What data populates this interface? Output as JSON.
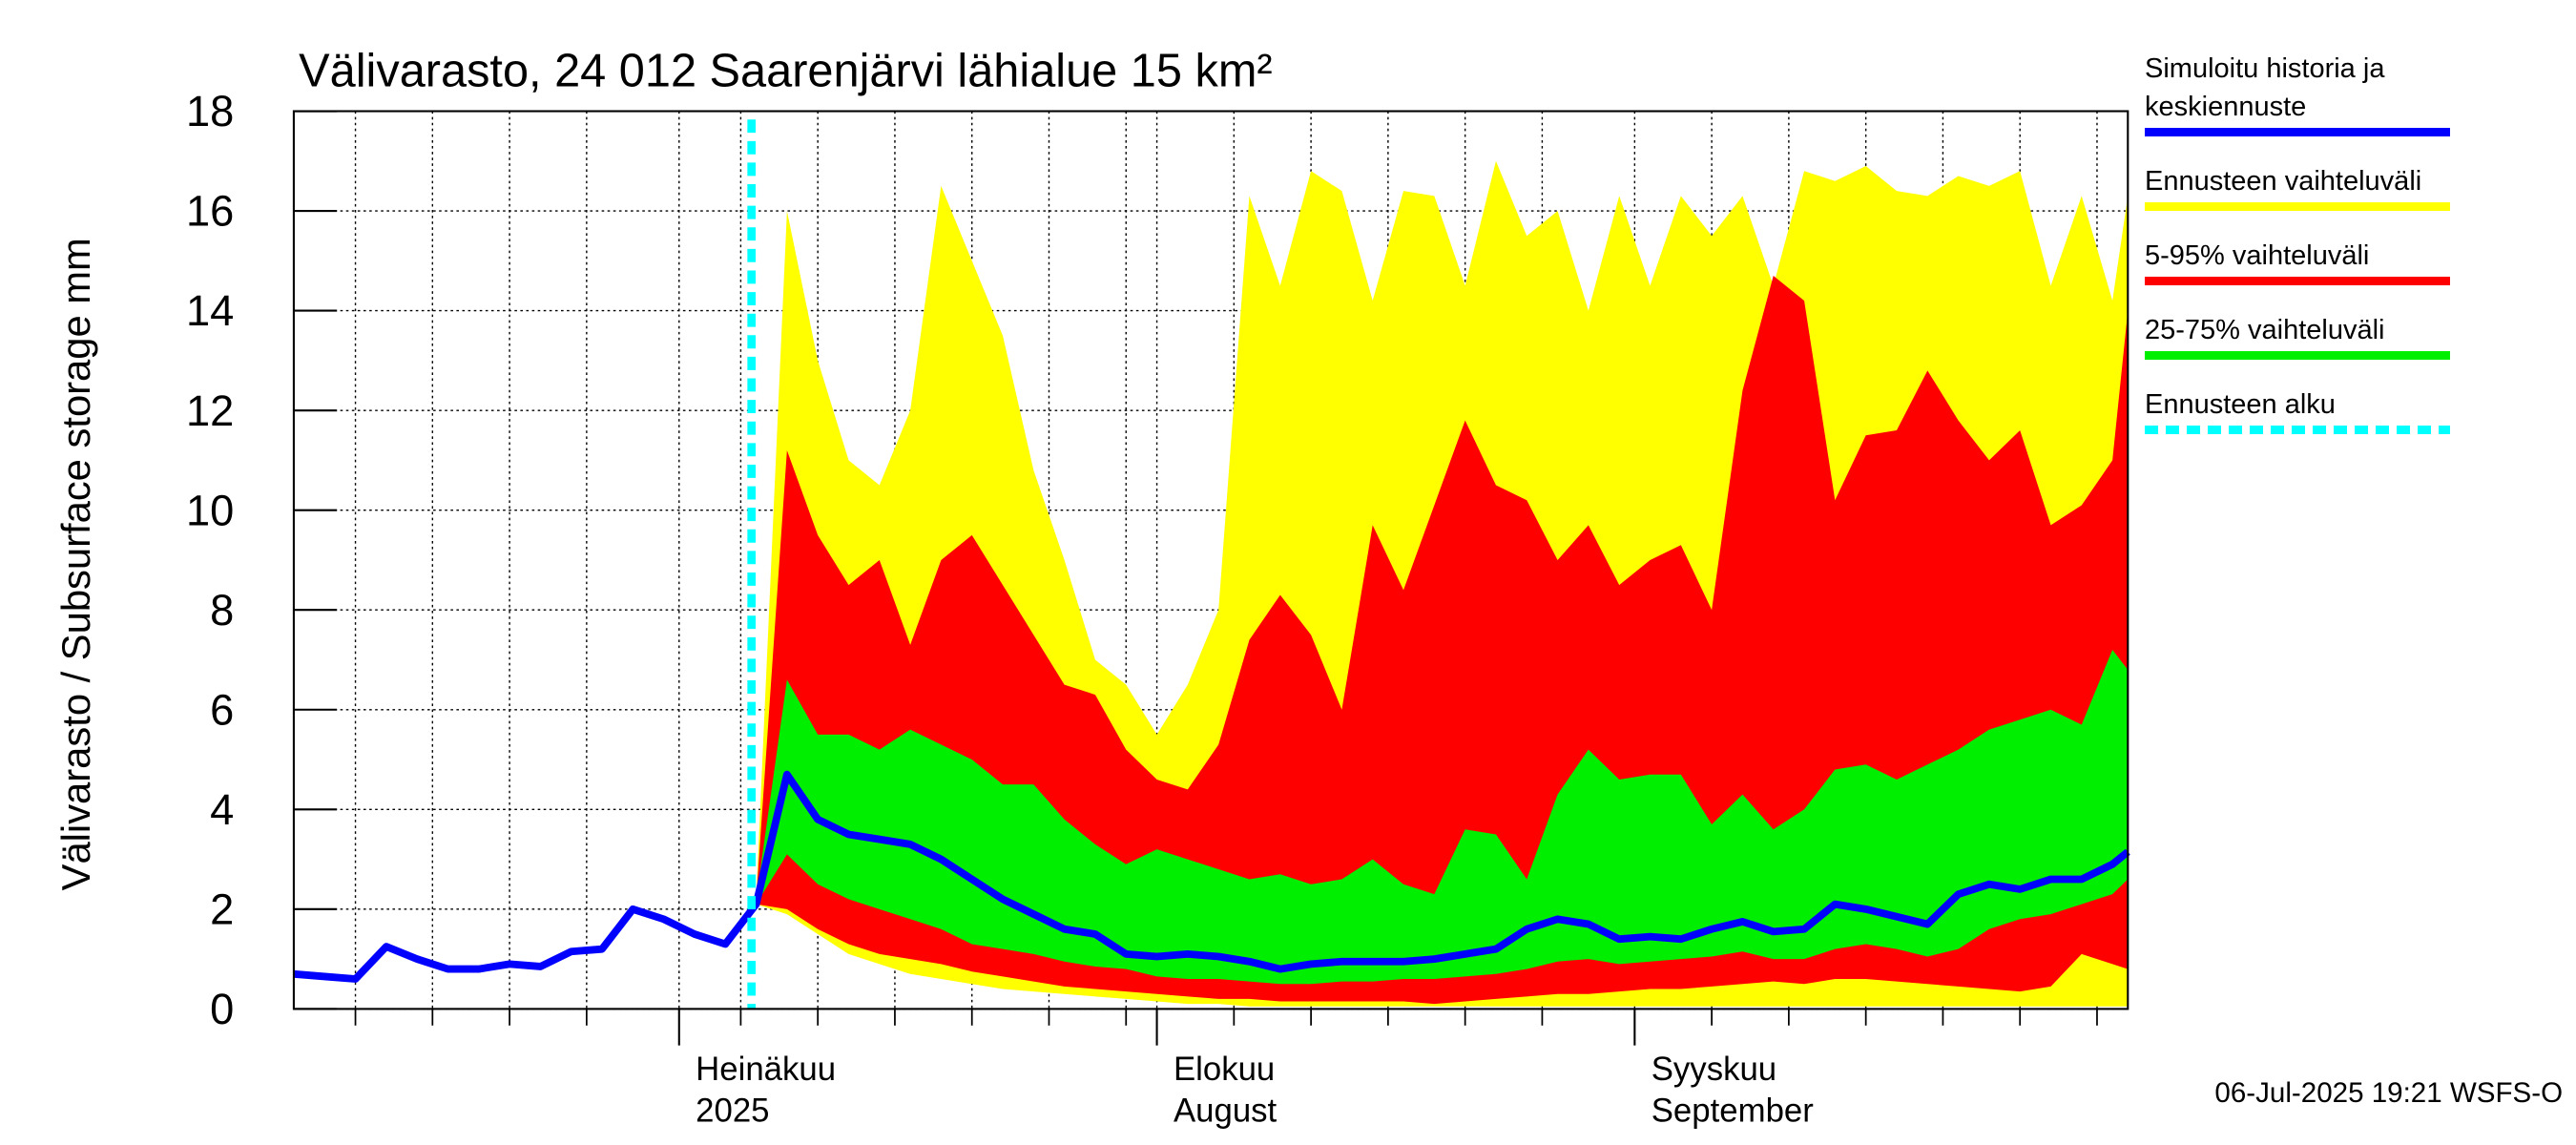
{
  "chart_data": {
    "type": "band-line",
    "title": "Välivarasto, 24 012 Saarenjärvi lähialue 15 km²",
    "y_label": "Välivarasto / Subsurface storage  mm",
    "footer": "06-Jul-2025 19:21 WSFS-O",
    "x": [
      0,
      2,
      4,
      6,
      8,
      10,
      12,
      14,
      16,
      18,
      20,
      22,
      24,
      26,
      28,
      30,
      32,
      34,
      36,
      38,
      40,
      42,
      44,
      46,
      48,
      50,
      52,
      54,
      56,
      58,
      60,
      62,
      64,
      66,
      68,
      70,
      72,
      74,
      76,
      78,
      80,
      82,
      84,
      86,
      88,
      90,
      92,
      94,
      96,
      98,
      100,
      102,
      104,
      106,
      108,
      110,
      112,
      114,
      116,
      118,
      119
    ],
    "xlim": [
      0,
      119
    ],
    "xticks": [
      {
        "value": 25,
        "label": [
          "Heinäkuu",
          "2025"
        ]
      },
      {
        "value": 56,
        "label": [
          "Elokuu",
          "August"
        ]
      },
      {
        "value": 87,
        "label": [
          "Syyskuu",
          "September"
        ]
      }
    ],
    "xminorticks": [
      4,
      9,
      14,
      19,
      29,
      34,
      39,
      44,
      49,
      54,
      61,
      66,
      71,
      76,
      81,
      92,
      97,
      102,
      107,
      112,
      117
    ],
    "ylim": [
      0,
      18
    ],
    "yticks": [
      0,
      2,
      4,
      6,
      8,
      10,
      12,
      14,
      16,
      18
    ],
    "grid": true,
    "series": [
      {
        "name": "Simuloitu historia ja keskiennuste",
        "color": "#0000ff",
        "values": [
          0.7,
          0.65,
          0.6,
          1.25,
          1.0,
          0.8,
          0.8,
          0.9,
          0.85,
          1.15,
          1.2,
          2.0,
          1.8,
          1.5,
          1.3,
          2.1,
          4.7,
          3.8,
          3.5,
          3.4,
          3.3,
          3.0,
          2.6,
          2.2,
          1.9,
          1.6,
          1.5,
          1.1,
          1.05,
          1.1,
          1.05,
          0.95,
          0.8,
          0.9,
          0.95,
          0.95,
          0.95,
          1.0,
          1.1,
          1.2,
          1.6,
          1.8,
          1.7,
          1.4,
          1.45,
          1.4,
          1.6,
          1.75,
          1.55,
          1.6,
          2.1,
          2.0,
          1.85,
          1.7,
          2.3,
          2.5,
          2.4,
          2.6,
          2.6,
          2.9,
          3.15
        ]
      }
    ],
    "bands": [
      {
        "name": "Ennusteen vaihteluväli",
        "color": "#ffff00",
        "high": [
          null,
          null,
          null,
          null,
          null,
          null,
          null,
          null,
          null,
          null,
          null,
          null,
          null,
          null,
          null,
          2.2,
          16,
          13,
          11,
          10.5,
          12,
          16.5,
          15,
          13.5,
          10.8,
          9,
          7,
          6.5,
          5.5,
          6.5,
          8,
          16.3,
          14.5,
          16.8,
          16.4,
          14.2,
          16.4,
          16.3,
          14.5,
          17,
          15.5,
          16,
          14,
          16.3,
          14.5,
          16.3,
          15.5,
          16.3,
          14.5,
          16.8,
          16.6,
          16.9,
          16.4,
          16.3,
          16.7,
          16.5,
          16.8,
          14.5,
          16.3,
          14.2,
          16.3
        ],
        "low": [
          null,
          null,
          null,
          null,
          null,
          null,
          null,
          null,
          null,
          null,
          null,
          null,
          null,
          null,
          null,
          2.1,
          1.9,
          1.5,
          1.1,
          0.9,
          0.7,
          0.6,
          0.5,
          0.4,
          0.35,
          0.3,
          0.25,
          0.2,
          0.15,
          0.1,
          0.1,
          0.05,
          0.05,
          0.05,
          0.05,
          0.05,
          0.05,
          0.05,
          0.05,
          0.05,
          0.05,
          0.05,
          0.05,
          0.05,
          0.05,
          0.05,
          0.05,
          0.05,
          0.05,
          0.05,
          0.05,
          0.05,
          0.05,
          0.05,
          0.05,
          0.05,
          0.05,
          0.05,
          0.05,
          0.05,
          0.05
        ]
      },
      {
        "name": "5-95% vaihteluväli",
        "color": "#ff0000",
        "high": [
          null,
          null,
          null,
          null,
          null,
          null,
          null,
          null,
          null,
          null,
          null,
          null,
          null,
          null,
          null,
          2.2,
          11.2,
          9.5,
          8.5,
          9.0,
          7.3,
          9.0,
          9.5,
          8.5,
          7.5,
          6.5,
          6.3,
          5.2,
          4.6,
          4.4,
          5.3,
          7.4,
          8.3,
          7.5,
          6.0,
          9.7,
          8.4,
          10.1,
          11.8,
          10.5,
          10.2,
          9.0,
          9.7,
          8.5,
          9.0,
          9.3,
          8.0,
          12.4,
          14.7,
          14.2,
          10.2,
          11.5,
          11.6,
          12.8,
          11.8,
          11.0,
          11.6,
          9.7,
          10.1,
          11.0,
          14.0
        ],
        "low": [
          null,
          null,
          null,
          null,
          null,
          null,
          null,
          null,
          null,
          null,
          null,
          null,
          null,
          null,
          null,
          2.1,
          2.0,
          1.6,
          1.3,
          1.1,
          1.0,
          0.9,
          0.75,
          0.65,
          0.55,
          0.45,
          0.4,
          0.35,
          0.3,
          0.25,
          0.2,
          0.2,
          0.15,
          0.15,
          0.15,
          0.15,
          0.15,
          0.1,
          0.15,
          0.2,
          0.25,
          0.3,
          0.3,
          0.35,
          0.4,
          0.4,
          0.45,
          0.5,
          0.55,
          0.5,
          0.6,
          0.6,
          0.55,
          0.5,
          0.45,
          0.4,
          0.35,
          0.45,
          1.1,
          0.9,
          0.8
        ]
      },
      {
        "name": "25-75% vaihteluväli",
        "color": "#00ee00",
        "high": [
          null,
          null,
          null,
          null,
          null,
          null,
          null,
          null,
          null,
          null,
          null,
          null,
          null,
          null,
          null,
          2.2,
          6.6,
          5.5,
          5.5,
          5.2,
          5.6,
          5.3,
          5.0,
          4.5,
          4.5,
          3.8,
          3.3,
          2.9,
          3.2,
          3.0,
          2.8,
          2.6,
          2.7,
          2.5,
          2.6,
          3.0,
          2.5,
          2.3,
          3.6,
          3.5,
          2.6,
          4.3,
          5.2,
          4.6,
          4.7,
          4.7,
          3.7,
          4.3,
          3.6,
          4.0,
          4.8,
          4.9,
          4.6,
          4.9,
          5.2,
          5.6,
          5.8,
          6.0,
          5.7,
          7.2,
          6.8
        ],
        "low": [
          null,
          null,
          null,
          null,
          null,
          null,
          null,
          null,
          null,
          null,
          null,
          null,
          null,
          null,
          null,
          2.1,
          3.1,
          2.5,
          2.2,
          2.0,
          1.8,
          1.6,
          1.3,
          1.2,
          1.1,
          0.95,
          0.85,
          0.8,
          0.65,
          0.6,
          0.6,
          0.55,
          0.5,
          0.5,
          0.55,
          0.55,
          0.6,
          0.6,
          0.65,
          0.7,
          0.8,
          0.95,
          1.0,
          0.9,
          0.95,
          1.0,
          1.05,
          1.15,
          1.0,
          1.0,
          1.2,
          1.3,
          1.2,
          1.05,
          1.2,
          1.6,
          1.8,
          1.9,
          2.1,
          2.3,
          2.6
        ]
      }
    ],
    "forecast_start": {
      "name": "Ennusteen alku",
      "x": 29.7,
      "color": "#00ffff"
    }
  }
}
